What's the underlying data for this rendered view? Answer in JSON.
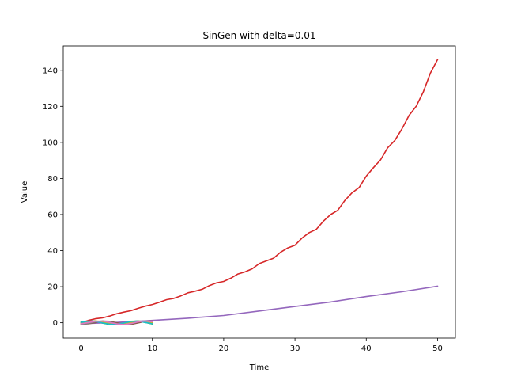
{
  "chart_data": {
    "type": "line",
    "title": "SinGen with delta=0.01",
    "xlabel": "Time",
    "ylabel": "Value",
    "xlim": [
      -2.5,
      52.5
    ],
    "ylim": [
      -8.5,
      153.5
    ],
    "x_ticks": [
      0,
      10,
      20,
      30,
      40,
      50
    ],
    "y_ticks": [
      0,
      20,
      40,
      60,
      80,
      100,
      120,
      140
    ],
    "grid": false,
    "legend": "none",
    "series": [
      {
        "color": "#1f77b4",
        "x": [
          0,
          1,
          2,
          3,
          4,
          5,
          6,
          7,
          8,
          9,
          10
        ],
        "y": [
          0.0,
          0.9,
          1.0,
          0.3,
          -0.6,
          -0.9,
          -0.2,
          0.7,
          1.0,
          0.4,
          -0.5
        ]
      },
      {
        "color": "#ff7f0e",
        "x": [
          0,
          1,
          2,
          3,
          4,
          5,
          6,
          7,
          8,
          9,
          10
        ],
        "y": [
          -0.5,
          0.3,
          0.9,
          0.8,
          0.0,
          -0.8,
          -0.9,
          -0.2,
          0.7,
          1.0,
          0.4
        ]
      },
      {
        "color": "#2ca02c",
        "x": [
          0,
          1,
          2,
          3,
          4,
          5,
          6,
          7,
          8,
          9,
          10
        ],
        "y": [
          0.5,
          0.9,
          0.6,
          -0.2,
          -0.9,
          -0.7,
          0.1,
          0.8,
          0.9,
          0.2,
          -0.7
        ]
      },
      {
        "color": "#d62728",
        "x": [
          0,
          1,
          2,
          3,
          4,
          5,
          6,
          7,
          8,
          9,
          10,
          11,
          12,
          13,
          14,
          15,
          16,
          17,
          18,
          19,
          20,
          21,
          22,
          23,
          24,
          25,
          26,
          27,
          28,
          29,
          30,
          31,
          32,
          33,
          34,
          35,
          36,
          37,
          38,
          39,
          40,
          41,
          42,
          43,
          44,
          45,
          46,
          47,
          48,
          49,
          50
        ],
        "y": [
          0.0,
          1.3,
          2.2,
          2.7,
          3.7,
          5.0,
          5.9,
          6.7,
          8.0,
          9.2,
          10.1,
          11.4,
          12.8,
          13.5,
          14.9,
          16.6,
          17.5,
          18.6,
          20.6,
          22.1,
          22.9,
          24.7,
          27.0,
          28.2,
          29.9,
          32.8,
          34.3,
          35.8,
          39.2,
          41.5,
          43.0,
          47.0,
          50.0,
          51.8,
          56.4,
          60.0,
          62.3,
          67.8,
          72.0,
          75.0,
          81.3,
          86.0,
          90.3,
          97.0,
          101.0,
          107.5,
          115.0,
          120.0,
          128.0,
          138.5,
          146.0
        ]
      },
      {
        "color": "#9467bd",
        "x": [
          0,
          5,
          10,
          15,
          20,
          25,
          30,
          35,
          40,
          45,
          50
        ],
        "y": [
          -0.5,
          0.2,
          1.3,
          2.5,
          4.0,
          6.5,
          9.0,
          11.5,
          14.5,
          17.2,
          20.3
        ]
      },
      {
        "color": "#8c564b",
        "x": [
          0,
          1,
          2,
          3,
          4,
          5,
          6,
          7,
          8,
          9,
          10
        ],
        "y": [
          -0.8,
          -0.6,
          0.1,
          0.9,
          0.8,
          0.0,
          -0.8,
          -0.9,
          -0.1,
          0.8,
          0.9
        ]
      },
      {
        "color": "#7f7f7f",
        "x": [
          0,
          1,
          2,
          3,
          4,
          5,
          6,
          7,
          8,
          9,
          10
        ],
        "y": [
          -1.0,
          -0.4,
          0.5,
          1.0,
          0.5,
          -0.5,
          -1.0,
          -0.5,
          0.5,
          1.0,
          0.5
        ]
      },
      {
        "color": "#bcbd22",
        "x": [
          0,
          1,
          2,
          3,
          4,
          5,
          6,
          7,
          8,
          9,
          10
        ],
        "y": [
          -0.3,
          0.6,
          1.0,
          0.5,
          -0.4,
          -1.0,
          -0.6,
          0.3,
          1.0,
          0.6,
          -0.3
        ]
      },
      {
        "color": "#17becf",
        "x": [
          0,
          1,
          2,
          3,
          4,
          5,
          6,
          7,
          8,
          9,
          10
        ],
        "y": [
          0.2,
          0.9,
          0.7,
          -0.1,
          -0.8,
          -0.8,
          -0.1,
          0.7,
          0.9,
          0.2,
          -0.6
        ]
      },
      {
        "color": "#e377c2",
        "x": [
          0,
          1,
          2,
          3,
          4,
          5,
          6,
          7,
          8,
          9,
          10
        ],
        "y": [
          -0.6,
          0.1,
          0.8,
          0.9,
          0.2,
          -0.6,
          -1.0,
          -0.4,
          0.5,
          1.0,
          0.6
        ]
      }
    ]
  }
}
